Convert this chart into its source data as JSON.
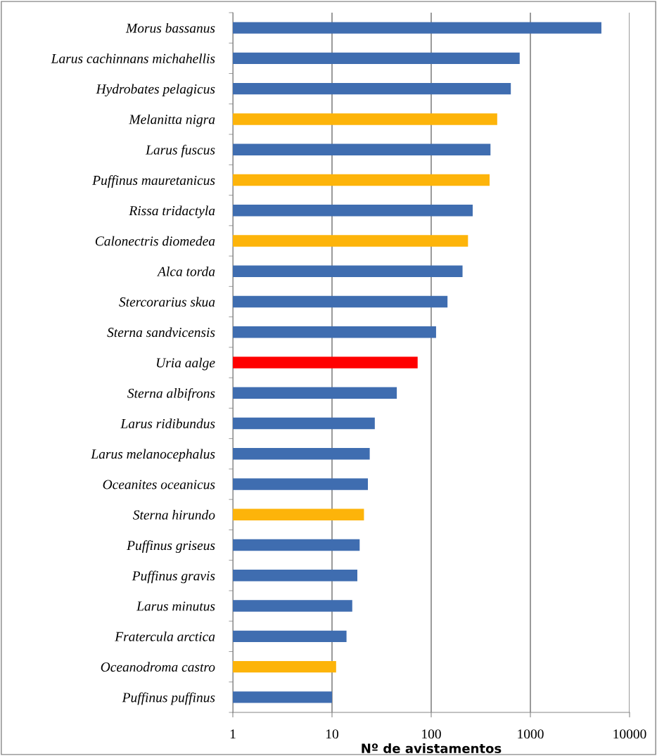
{
  "chart_data": {
    "type": "bar",
    "orientation": "horizontal",
    "xlabel": "Nº de avistamentos",
    "categories": [
      "Morus bassanus",
      "Larus cachinnans michahellis",
      "Hydrobates pelagicus",
      "Melanitta nigra",
      "Larus fuscus",
      "Puffinus mauretanicus",
      "Rissa tridactyla",
      "Calonectris diomedea",
      "Alca torda",
      "Stercorarius skua",
      "Sterna sandvicensis",
      "Uria aalge",
      "Sterna albifrons",
      "Larus ridibundus",
      "Larus melanocephalus",
      "Oceanites oceanicus",
      "Sterna hirundo",
      "Puffinus griseus",
      "Puffinus gravis",
      "Larus minutus",
      "Fratercula arctica",
      "Oceanodroma castro",
      "Puffinus puffinus"
    ],
    "values": [
      5200,
      780,
      635,
      463,
      396,
      388,
      262,
      235,
      207,
      146,
      112,
      73,
      45,
      27,
      24,
      23,
      21,
      19,
      18,
      16,
      14,
      11,
      10
    ],
    "colors": [
      "#3f6db0",
      "#3f6db0",
      "#3f6db0",
      "#fdb40a",
      "#3f6db0",
      "#fdb40a",
      "#3f6db0",
      "#fdb40a",
      "#3f6db0",
      "#3f6db0",
      "#3f6db0",
      "#ff0000",
      "#3f6db0",
      "#3f6db0",
      "#3f6db0",
      "#3f6db0",
      "#fdb40a",
      "#3f6db0",
      "#3f6db0",
      "#3f6db0",
      "#3f6db0",
      "#fdb40a",
      "#3f6db0"
    ],
    "log": "x",
    "xlim": [
      1,
      10000
    ],
    "xticks": [
      1,
      10,
      100,
      1000,
      10000
    ],
    "grid": "x",
    "legend": false
  }
}
